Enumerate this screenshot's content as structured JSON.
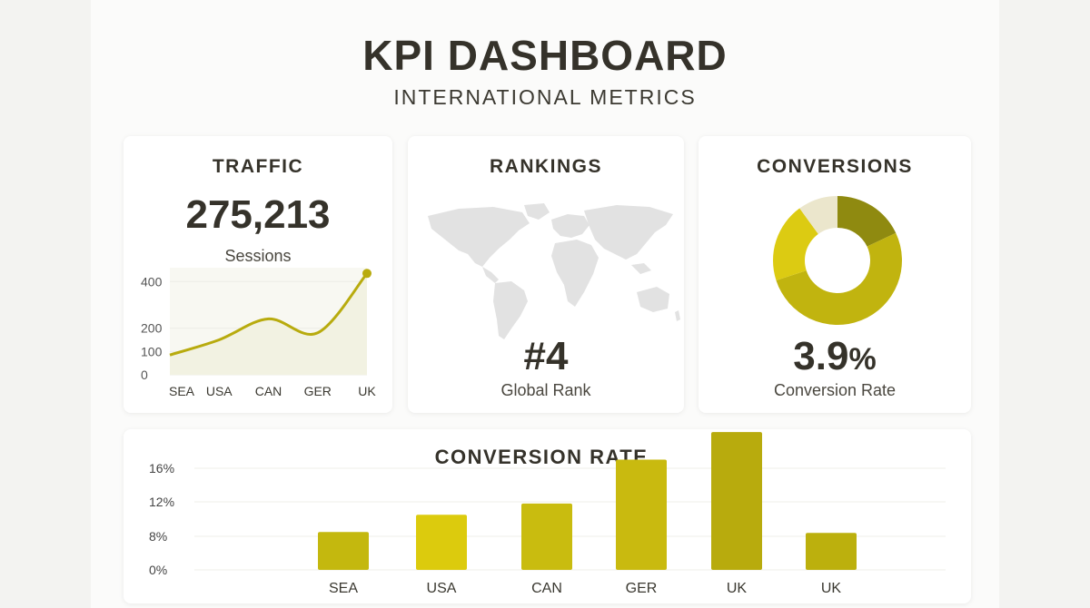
{
  "header": {
    "title": "KPI DASHBOARD",
    "subtitle": "INTERNATIONAL METRICS"
  },
  "traffic": {
    "title": "TRAFFIC",
    "value": "275,213",
    "caption": "Sessions"
  },
  "rankings": {
    "title": "RANKINGS",
    "value": "#4",
    "caption": "Global Rank"
  },
  "conversions": {
    "title": "CONVERSIONS",
    "value": "3.9",
    "unit": "%",
    "caption": "Conversion Rate"
  },
  "colors": {
    "accent": "#b8ab0e",
    "accent_light": "#d9c811",
    "accent_dark": "#8f8a10",
    "slice_pale": "#ebe6cc",
    "map": "#e2e2e2",
    "text": "#35322a"
  },
  "chart_data": [
    {
      "type": "line",
      "categories": [
        "SEA",
        "USA",
        "CAN",
        "GER",
        "UK"
      ],
      "x": [
        0,
        1,
        2,
        3,
        4
      ],
      "values": [
        85,
        150,
        240,
        180,
        435
      ],
      "yticks": [
        0,
        100,
        200,
        400
      ],
      "ylim": [
        0,
        440
      ],
      "area_fill": true,
      "marker_last_point": true
    },
    {
      "type": "pie",
      "donut": true,
      "slices": [
        {
          "value": 18,
          "color": "#8f8a10"
        },
        {
          "value": 52,
          "color": "#c1b40f"
        },
        {
          "value": 20,
          "color": "#dccb12"
        },
        {
          "value": 10,
          "color": "#ebe6cc"
        }
      ]
    },
    {
      "type": "bar",
      "title": "CONVERSION RATE",
      "categories": [
        "SEA",
        "USA",
        "CAN",
        "GER",
        "UK",
        "UK"
      ],
      "values": [
        8.5,
        10.5,
        11.8,
        17.0,
        20.2,
        8.4
      ],
      "yticks": [
        "16%",
        "12%",
        "8%",
        "0%"
      ],
      "ytick_values": [
        16,
        12,
        8,
        0
      ],
      "colors": [
        "#c4b80e",
        "#dccb0d",
        "#c9bc0f",
        "#c9ba0f",
        "#b8ab0d",
        "#bcb00d"
      ]
    }
  ]
}
